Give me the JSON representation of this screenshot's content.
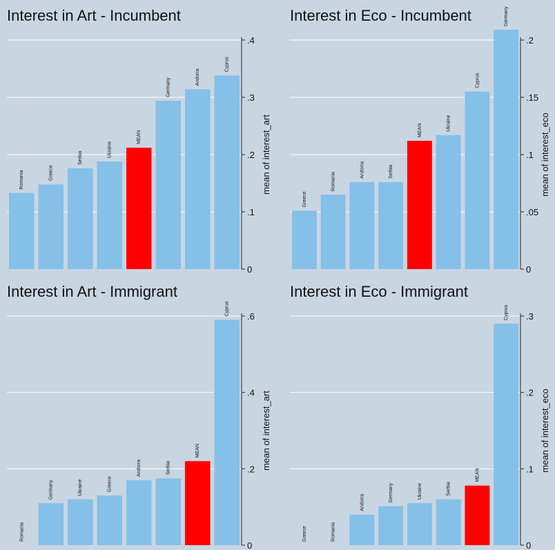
{
  "colors": {
    "background": "#c8d6e2",
    "bar": "#85c0e9",
    "mean_bar": "#ff0000",
    "grid": "#ffffff",
    "axis": "#222222"
  },
  "chart_data": [
    {
      "type": "bar",
      "title": "Interest in Art - Incumbent",
      "ylabel": "mean of interest_art",
      "categories": [
        "Romania",
        "Greece",
        "Serbia",
        "Ukraine",
        "MEAN",
        "Germany",
        "Andorra",
        "Cyprus"
      ],
      "values": [
        0.133,
        0.148,
        0.176,
        0.188,
        0.212,
        0.294,
        0.314,
        0.338
      ],
      "highlight": "MEAN",
      "ylim": [
        0,
        0.4
      ],
      "yticks": [
        0,
        0.1,
        0.2,
        0.3,
        0.4
      ],
      "ytick_labels": [
        "0",
        ".1",
        ".2",
        ".3",
        ".4"
      ],
      "grid": true
    },
    {
      "type": "bar",
      "title": "Interest in Eco - Incumbent",
      "ylabel": "mean of interest_eco",
      "categories": [
        "Greece",
        "Romania",
        "Andorra",
        "Serbia",
        "MEAN",
        "Ukraine",
        "Cyprus",
        "Germany"
      ],
      "values": [
        0.051,
        0.065,
        0.076,
        0.076,
        0.112,
        0.117,
        0.155,
        0.209
      ],
      "highlight": "MEAN",
      "ylim": [
        0,
        0.2
      ],
      "yticks": [
        0,
        0.05,
        0.1,
        0.15,
        0.2
      ],
      "ytick_labels": [
        "0",
        ".05",
        ".1",
        ".15",
        ".2"
      ],
      "grid": true
    },
    {
      "type": "bar",
      "title": "Interest in Art - Immigrant",
      "ylabel": "mean of interest_art",
      "categories": [
        "Romania",
        "Germany",
        "Ukraine",
        "Greece",
        "Andorra",
        "Serbia",
        "MEAN",
        "Cyprus"
      ],
      "values": [
        0,
        0.11,
        0.12,
        0.13,
        0.17,
        0.175,
        0.22,
        0.59
      ],
      "highlight": "MEAN",
      "ylim": [
        0,
        0.6
      ],
      "yticks": [
        0,
        0.2,
        0.4,
        0.6
      ],
      "ytick_labels": [
        "0",
        ".2",
        ".4",
        ".6"
      ],
      "grid": true
    },
    {
      "type": "bar",
      "title": "Interest in Eco - Immigrant",
      "ylabel": "mean of interest_eco",
      "categories": [
        "Greece",
        "Romania",
        "Andorra",
        "Germany",
        "Ukraine",
        "Serbia",
        "MEAN",
        "Cyprus"
      ],
      "values": [
        0,
        0,
        0.04,
        0.051,
        0.055,
        0.06,
        0.078,
        0.29
      ],
      "highlight": "MEAN",
      "ylim": [
        0,
        0.3
      ],
      "yticks": [
        0,
        0.1,
        0.2,
        0.3
      ],
      "ytick_labels": [
        "0",
        ".1",
        ".2",
        ".3"
      ],
      "grid": true
    }
  ]
}
